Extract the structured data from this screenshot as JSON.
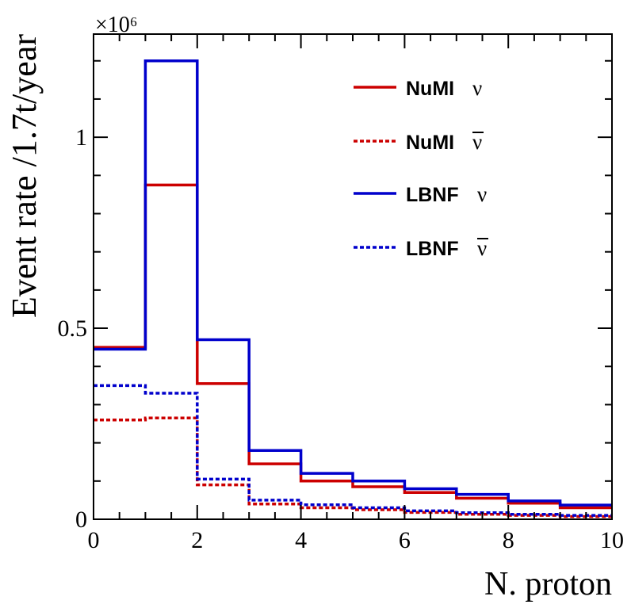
{
  "chart_data": {
    "type": "line",
    "style": "step-histogram",
    "xlabel": "N. proton",
    "ylabel": "Event rate /1.7t/year",
    "y_multiplier": "×10⁶",
    "xlim": [
      0,
      10
    ],
    "ylim": [
      0,
      1.27
    ],
    "x_ticks": [
      0,
      2,
      4,
      6,
      8,
      10
    ],
    "x_tick_labels": [
      "0",
      "2",
      "4",
      "6",
      "8",
      "10"
    ],
    "y_ticks": [
      0,
      0.5,
      1
    ],
    "y_tick_labels": [
      "0",
      "0.5",
      "1"
    ],
    "bin_edges": [
      0,
      1,
      2,
      3,
      4,
      5,
      6,
      7,
      8,
      9,
      10
    ],
    "grid": false,
    "legend_position": "top-right",
    "series": [
      {
        "name": "NuMI ν",
        "legend_text": "NuMI",
        "legend_symbol": "ν",
        "color": "#cc0000",
        "dashed": false,
        "values": [
          0.45,
          0.875,
          0.355,
          0.145,
          0.1,
          0.085,
          0.07,
          0.055,
          0.042,
          0.03
        ]
      },
      {
        "name": "NuMI ν̄",
        "legend_text": "NuMI",
        "legend_symbol": "ν",
        "legend_overline": true,
        "color": "#cc0000",
        "dashed": true,
        "values": [
          0.26,
          0.265,
          0.09,
          0.04,
          0.03,
          0.025,
          0.018,
          0.013,
          0.01,
          0.007
        ]
      },
      {
        "name": "LBNF ν",
        "legend_text": "LBNF",
        "legend_symbol": "ν",
        "color": "#0000cc",
        "dashed": false,
        "values": [
          0.445,
          1.2,
          0.47,
          0.18,
          0.12,
          0.1,
          0.08,
          0.065,
          0.048,
          0.037
        ]
      },
      {
        "name": "LBNF ν̄",
        "legend_text": "LBNF",
        "legend_symbol": "ν",
        "legend_overline": true,
        "color": "#0000cc",
        "dashed": true,
        "values": [
          0.35,
          0.33,
          0.105,
          0.05,
          0.038,
          0.03,
          0.022,
          0.017,
          0.013,
          0.01
        ]
      }
    ]
  }
}
